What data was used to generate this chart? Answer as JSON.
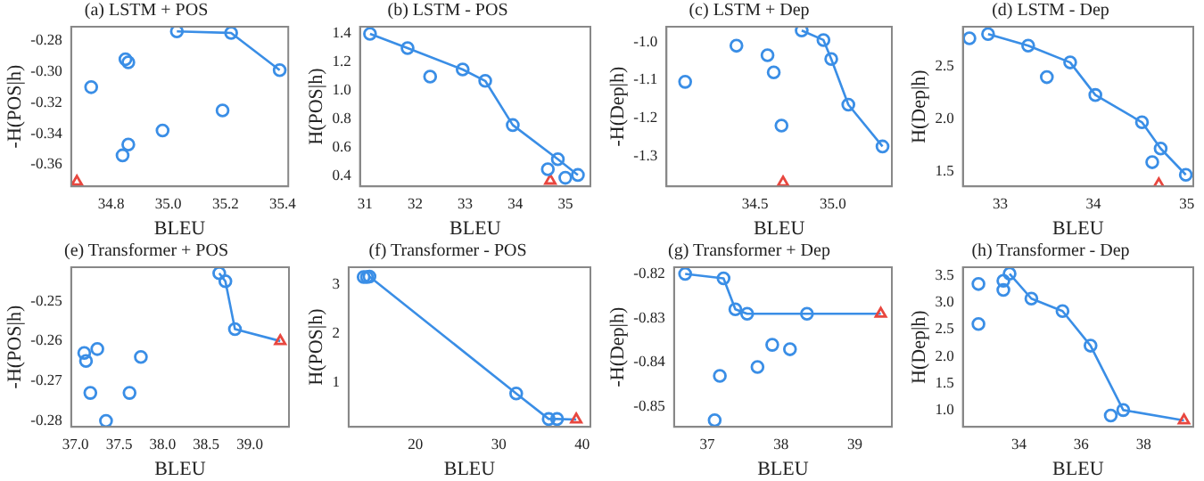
{
  "chart_data": [
    {
      "type": "scatter",
      "title": "(a) LSTM + POS",
      "xlabel": "BLEU",
      "ylabel": "-H(POS|h)",
      "xlim": [
        34.66,
        35.42
      ],
      "xticks": [
        34.8,
        {
          "value": 35,
          "label": "35.0"
        },
        35.2,
        35.4
      ],
      "ylim": [
        -0.374,
        -0.271
      ],
      "yticks": [
        -0.36,
        -0.34,
        -0.32,
        {
          "value": -0.3,
          "label": "-0.30"
        },
        -0.28
      ],
      "grid": false,
      "legend": false,
      "series": [
        {
          "type": "scatter",
          "marker": "circle",
          "color": "#3a8ee6",
          "x": [
            34.73,
            34.85,
            34.86,
            34.86,
            34.84,
            34.98,
            35.19,
            35.03,
            35.22,
            35.39
          ],
          "values": [
            -0.31,
            -0.292,
            -0.294,
            -0.347,
            -0.354,
            -0.338,
            -0.325,
            -0.274,
            -0.275,
            -0.299
          ]
        },
        {
          "type": "line",
          "marker": "none",
          "color": "#3a8ee6",
          "x": [
            35.03,
            35.22,
            35.39
          ],
          "values": [
            -0.274,
            -0.275,
            -0.299
          ]
        },
        {
          "type": "scatter",
          "marker": "triangle",
          "color": "#e8473f",
          "x": [
            34.68
          ],
          "values": [
            -0.371
          ]
        }
      ]
    },
    {
      "type": "scatter",
      "title": "(b) LSTM - POS",
      "xlabel": "BLEU",
      "ylabel": "H(POS|h)",
      "xlim": [
        30.9,
        35.5
      ],
      "xticks": [
        31,
        32,
        33,
        34,
        35
      ],
      "ylim": [
        0.33,
        1.45
      ],
      "yticks": [
        0.4,
        0.6,
        0.8,
        {
          "value": 1,
          "label": "1.0"
        },
        1.2,
        1.4
      ],
      "grid": false,
      "legend": false,
      "series": [
        {
          "type": "scatter",
          "marker": "circle",
          "color": "#3a8ee6",
          "x": [
            31.1,
            31.85,
            32.3,
            32.95,
            33.4,
            33.95,
            34.85,
            34.65,
            35.0,
            35.25
          ],
          "values": [
            1.4,
            1.3,
            1.1,
            1.15,
            1.07,
            0.76,
            0.52,
            0.45,
            0.39,
            0.41
          ]
        },
        {
          "type": "line",
          "marker": "none",
          "color": "#3a8ee6",
          "x": [
            31.1,
            31.85,
            32.95,
            33.4,
            33.95,
            34.85,
            35.25
          ],
          "values": [
            1.4,
            1.3,
            1.15,
            1.07,
            0.76,
            0.52,
            0.41
          ]
        },
        {
          "type": "scatter",
          "marker": "triangle",
          "color": "#e8473f",
          "x": [
            34.7
          ],
          "values": [
            0.37
          ]
        }
      ]
    },
    {
      "type": "scatter",
      "title": "(c) LSTM + Dep",
      "xlabel": "BLEU",
      "ylabel": "-H(Dep|h)",
      "xlim": [
        33.93,
        35.38
      ],
      "xticks": [
        34.5,
        {
          "value": 35,
          "label": "35.0"
        }
      ],
      "ylim": [
        -1.38,
        -0.96
      ],
      "yticks": [
        -1.3,
        -1.2,
        -1.1,
        {
          "value": -1,
          "label": "-1.0"
        }
      ],
      "grid": false,
      "legend": false,
      "series": [
        {
          "type": "scatter",
          "marker": "circle",
          "color": "#3a8ee6",
          "x": [
            34.05,
            34.38,
            34.58,
            34.62,
            34.67,
            34.8,
            34.94,
            34.99,
            35.1,
            35.32
          ],
          "values": [
            -1.105,
            -1.01,
            -1.035,
            -1.08,
            -1.22,
            -0.97,
            -0.995,
            -1.045,
            -1.165,
            -1.275
          ]
        },
        {
          "type": "line",
          "marker": "none",
          "color": "#3a8ee6",
          "x": [
            34.8,
            34.94,
            34.99,
            35.1,
            35.32
          ],
          "values": [
            -0.97,
            -0.995,
            -1.045,
            -1.165,
            -1.275
          ]
        },
        {
          "type": "scatter",
          "marker": "triangle",
          "color": "#e8473f",
          "x": [
            34.68
          ],
          "values": [
            -1.37
          ]
        }
      ]
    },
    {
      "type": "scatter",
      "title": "(d) LSTM - Dep",
      "xlabel": "BLEU",
      "ylabel": "H(Dep|h)",
      "xlim": [
        32.6,
        35.07
      ],
      "xticks": [
        33,
        34,
        35
      ],
      "ylim": [
        1.36,
        2.88
      ],
      "yticks": [
        1.5,
        {
          "value": 2,
          "label": "2.0"
        },
        2.5
      ],
      "grid": false,
      "legend": false,
      "series": [
        {
          "type": "scatter",
          "marker": "circle",
          "color": "#3a8ee6",
          "x": [
            32.67,
            32.87,
            33.3,
            33.5,
            33.75,
            34.02,
            34.52,
            34.63,
            34.72,
            34.99
          ],
          "values": [
            2.77,
            2.81,
            2.7,
            2.4,
            2.54,
            2.23,
            1.97,
            1.59,
            1.72,
            1.47
          ]
        },
        {
          "type": "line",
          "marker": "none",
          "color": "#3a8ee6",
          "x": [
            32.87,
            33.3,
            33.75,
            34.02,
            34.52,
            34.72,
            34.99
          ],
          "values": [
            2.81,
            2.7,
            2.54,
            2.23,
            1.97,
            1.72,
            1.47
          ]
        },
        {
          "type": "scatter",
          "marker": "triangle",
          "color": "#e8473f",
          "x": [
            34.7
          ],
          "values": [
            1.38
          ]
        }
      ]
    },
    {
      "type": "scatter",
      "title": "(e) Transformer + POS",
      "xlabel": "BLEU",
      "ylabel": "-H(POS|h)",
      "xlim": [
        36.95,
        39.45
      ],
      "xticks": [
        {
          "value": 37,
          "label": "37.0"
        },
        37.5,
        {
          "value": 38,
          "label": "38.0"
        },
        38.5,
        {
          "value": 39,
          "label": "39.0"
        }
      ],
      "ylim": [
        -0.2815,
        -0.2415
      ],
      "yticks": [
        -0.28,
        -0.27,
        -0.26,
        -0.25
      ],
      "grid": false,
      "legend": false,
      "series": [
        {
          "type": "scatter",
          "marker": "circle",
          "color": "#3a8ee6",
          "x": [
            37.1,
            37.12,
            37.25,
            37.17,
            37.35,
            37.62,
            37.75,
            38.65,
            38.72,
            38.83
          ],
          "values": [
            -0.263,
            -0.265,
            -0.262,
            -0.273,
            -0.28,
            -0.273,
            -0.264,
            -0.243,
            -0.245,
            -0.257
          ]
        },
        {
          "type": "line",
          "marker": "none",
          "color": "#3a8ee6",
          "x": [
            38.65,
            38.72,
            38.83,
            39.35
          ],
          "values": [
            -0.243,
            -0.245,
            -0.257,
            -0.26
          ]
        },
        {
          "type": "scatter",
          "marker": "triangle",
          "color": "#e8473f",
          "x": [
            39.35
          ],
          "values": [
            -0.26
          ]
        }
      ]
    },
    {
      "type": "scatter",
      "title": "(f) Transformer - POS",
      "xlabel": "BLEU",
      "ylabel": "H(POS|h)",
      "xlim": [
        12,
        41
      ],
      "xticks": [
        20,
        30,
        40
      ],
      "ylim": [
        0.1,
        3.35
      ],
      "yticks": [
        1,
        2,
        3
      ],
      "grid": false,
      "legend": false,
      "series": [
        {
          "type": "scatter",
          "marker": "circle",
          "color": "#3a8ee6",
          "x": [
            13.8,
            14.2,
            14.5,
            32.1,
            36,
            37
          ],
          "values": [
            3.15,
            3.15,
            3.16,
            0.78,
            0.26,
            0.26
          ]
        },
        {
          "type": "line",
          "marker": "none",
          "color": "#3a8ee6",
          "x": [
            14.5,
            32.1,
            36,
            37,
            39.3
          ],
          "values": [
            3.16,
            0.78,
            0.26,
            0.26,
            0.25
          ]
        },
        {
          "type": "scatter",
          "marker": "triangle",
          "color": "#e8473f",
          "x": [
            39.3
          ],
          "values": [
            0.25
          ]
        }
      ]
    },
    {
      "type": "scatter",
      "title": "(g) Transformer + Dep",
      "xlabel": "BLEU",
      "ylabel": "-H(Dep|h)",
      "xlim": [
        36.55,
        39.5
      ],
      "xticks": [
        37,
        38,
        39
      ],
      "ylim": [
        -0.8545,
        -0.8185
      ],
      "yticks": [
        -0.85,
        -0.84,
        -0.83,
        -0.82
      ],
      "grid": false,
      "legend": false,
      "series": [
        {
          "type": "scatter",
          "marker": "circle",
          "color": "#3a8ee6",
          "x": [
            36.7,
            37.22,
            37.38,
            37.54,
            38.35,
            37.17,
            37.1,
            37.68,
            37.88,
            38.12
          ],
          "values": [
            -0.82,
            -0.821,
            -0.828,
            -0.829,
            -0.829,
            -0.843,
            -0.853,
            -0.841,
            -0.836,
            -0.837
          ]
        },
        {
          "type": "line",
          "marker": "none",
          "color": "#3a8ee6",
          "x": [
            36.7,
            37.22,
            37.38,
            37.54,
            38.35,
            39.35
          ],
          "values": [
            -0.82,
            -0.821,
            -0.828,
            -0.829,
            -0.829,
            -0.829
          ]
        },
        {
          "type": "scatter",
          "marker": "triangle",
          "color": "#e8473f",
          "x": [
            39.35
          ],
          "values": [
            -0.829
          ]
        }
      ]
    },
    {
      "type": "scatter",
      "title": "(h) Transformer - Dep",
      "xlabel": "BLEU",
      "ylabel": "H(Dep|h)",
      "xlim": [
        32.2,
        39.6
      ],
      "xticks": [
        34,
        36,
        38
      ],
      "ylim": [
        0.7,
        3.65
      ],
      "yticks": [
        {
          "value": 1,
          "label": "1.0"
        },
        1.5,
        {
          "value": 2,
          "label": "2.0"
        },
        2.5,
        {
          "value": 3,
          "label": "3.0"
        },
        3.5
      ],
      "grid": false,
      "legend": false,
      "series": [
        {
          "type": "scatter",
          "marker": "circle",
          "color": "#3a8ee6",
          "x": [
            32.7,
            32.7,
            33.5,
            33.5,
            33.7,
            34.4,
            35.4,
            36.3,
            36.95,
            37.35
          ],
          "values": [
            2.6,
            3.34,
            3.4,
            3.23,
            3.53,
            3.07,
            2.84,
            2.2,
            0.91,
            1.01
          ]
        },
        {
          "type": "line",
          "marker": "none",
          "color": "#3a8ee6",
          "x": [
            33.7,
            34.4,
            35.4,
            36.3,
            37.35,
            39.3
          ],
          "values": [
            3.53,
            3.07,
            2.84,
            2.2,
            1.01,
            0.82
          ]
        },
        {
          "type": "scatter",
          "marker": "triangle",
          "color": "#e8473f",
          "x": [
            39.3
          ],
          "values": [
            0.82
          ]
        }
      ]
    }
  ]
}
